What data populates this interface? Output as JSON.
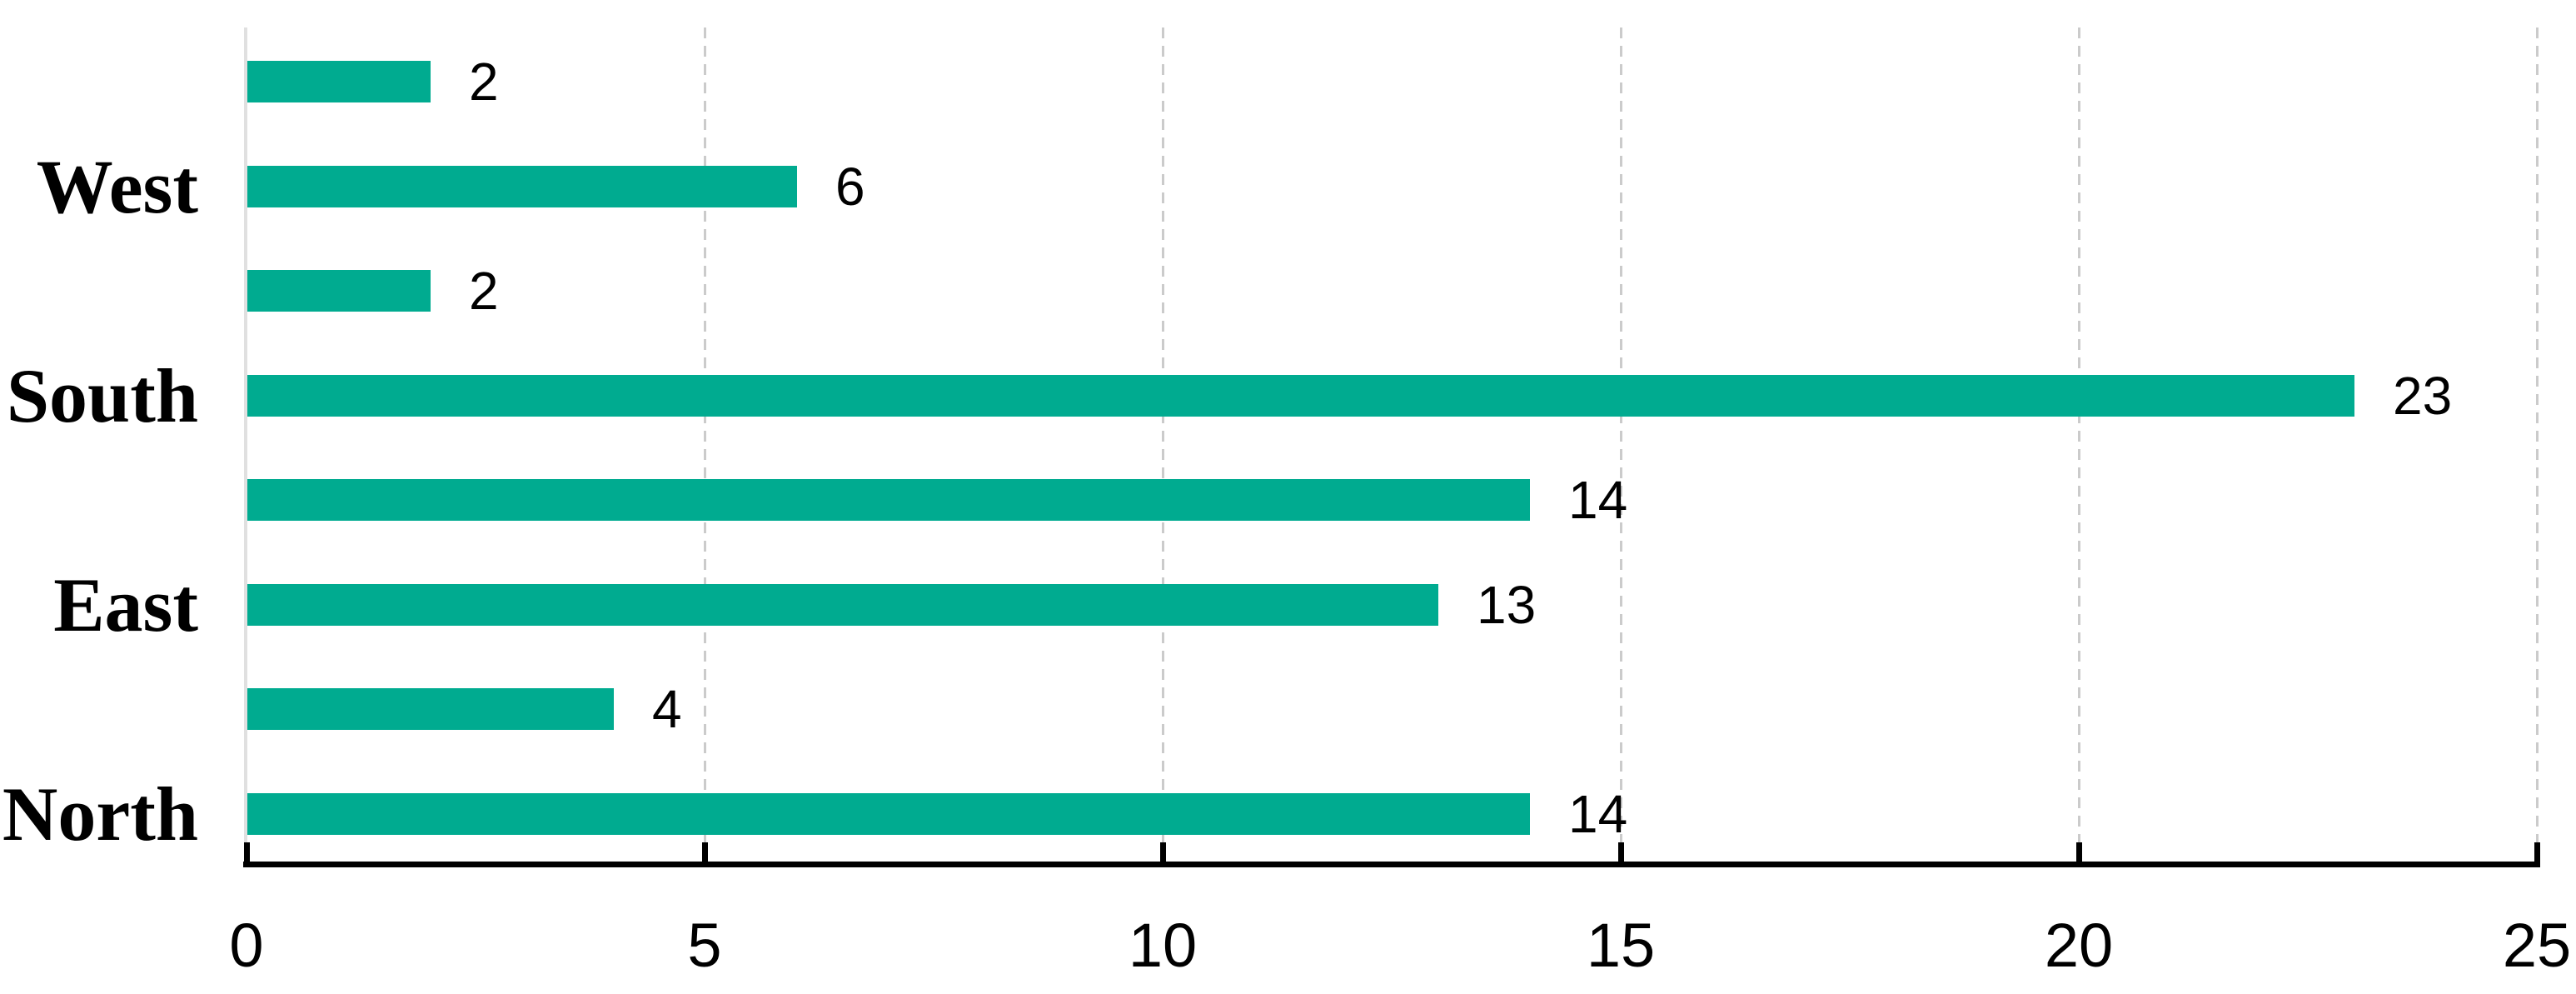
{
  "chart_data": {
    "type": "bar",
    "orientation": "horizontal",
    "title": "",
    "xlabel": "",
    "ylabel": "",
    "xlim": [
      0,
      25
    ],
    "x_ticks": [
      0,
      5,
      10,
      15,
      20,
      25
    ],
    "grid": "vertical-dashed",
    "legend": "none",
    "value_labels": "end-of-bar",
    "rows": [
      {
        "category": "",
        "value": 2
      },
      {
        "category": "West",
        "value": 6
      },
      {
        "category": "",
        "value": 2
      },
      {
        "category": "South",
        "value": 23
      },
      {
        "category": "",
        "value": 14
      },
      {
        "category": "East",
        "value": 13
      },
      {
        "category": "",
        "value": 4
      },
      {
        "category": "North",
        "value": 14
      }
    ]
  },
  "colors": {
    "bar": "#00AB90",
    "axis": "#000000",
    "text": "#000000",
    "gridline": "#cbcbcb",
    "zero_line": "#e0e0e0",
    "background": "#ffffff"
  }
}
